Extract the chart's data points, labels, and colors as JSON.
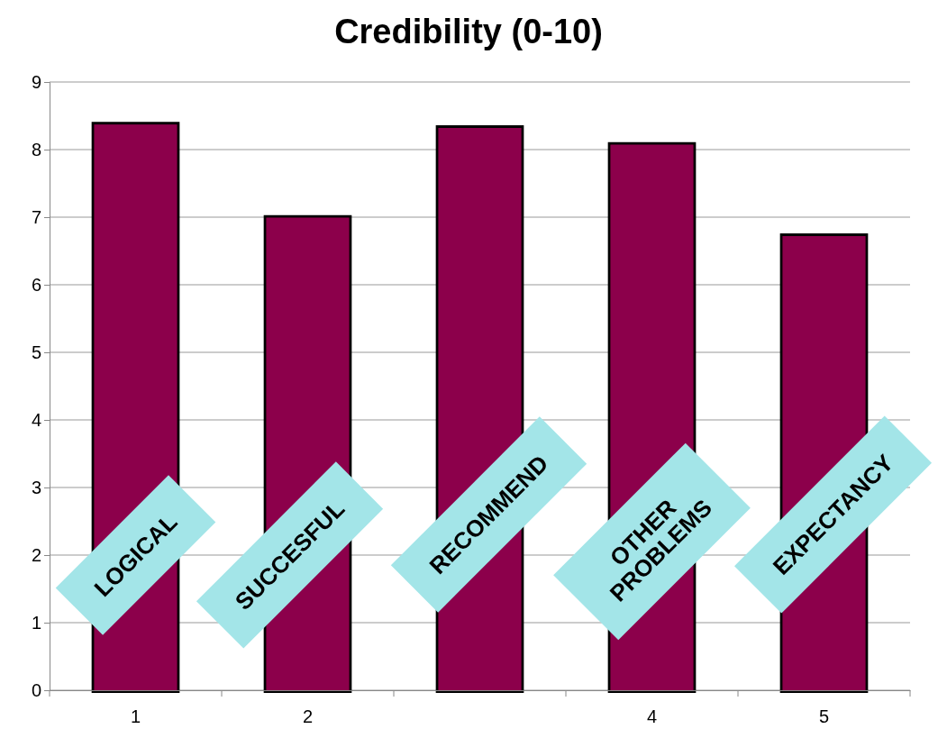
{
  "chart_data": {
    "type": "bar",
    "title": "Credibility (0-10)",
    "categories": [
      "1",
      "2",
      null,
      "4",
      "5"
    ],
    "values": [
      8.37,
      6.99,
      8.32,
      8.07,
      6.72
    ],
    "color": "#8c004c",
    "ylim": [
      0,
      9
    ],
    "yticks": [
      0,
      1,
      2,
      3,
      4,
      5,
      6,
      7,
      8,
      9
    ],
    "grid": "y",
    "annotations": [
      "LOGICAL",
      "SUCCESFUL",
      "RECOMMEND",
      "OTHER PROBLEMS",
      "EXPECTANCY"
    ]
  }
}
